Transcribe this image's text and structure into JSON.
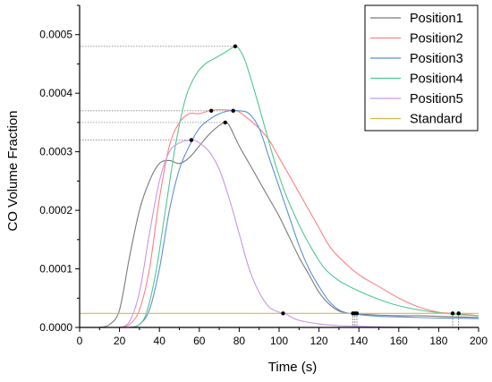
{
  "chart_data": {
    "type": "line",
    "xlabel": "Time (s)",
    "ylabel": "CO  Volume Fraction",
    "xlim": [
      0,
      200
    ],
    "ylim": [
      0,
      0.00055
    ],
    "xticks": [
      0,
      20,
      40,
      60,
      80,
      100,
      120,
      140,
      160,
      180,
      200
    ],
    "yticks": [
      0.0,
      0.0001,
      0.0002,
      0.0003,
      0.0004,
      0.0005
    ],
    "ytick_labels": [
      "0.0000",
      "0.0001",
      "0.0002",
      "0.0003",
      "0.0004",
      "0.0005"
    ],
    "grid": false,
    "legend_position": "top-right",
    "series": [
      {
        "name": "Position1",
        "color": "#7a7a7a",
        "x": [
          10,
          15,
          20,
          25,
          30,
          35,
          40,
          45,
          50,
          55,
          60,
          65,
          70,
          73,
          75,
          80,
          85,
          90,
          95,
          100,
          105,
          110,
          115,
          120,
          125,
          130,
          135,
          138,
          140,
          150,
          160,
          170,
          180,
          190,
          200
        ],
        "y": [
          0,
          5e-06,
          3e-05,
          0.00012,
          0.0002,
          0.00025,
          0.00028,
          0.000285,
          0.00028,
          0.00029,
          0.00031,
          0.00033,
          0.000345,
          0.00035,
          0.000345,
          0.00031,
          0.00028,
          0.00025,
          0.00022,
          0.00019,
          0.000155,
          0.00012,
          9e-05,
          6e-05,
          4e-05,
          2.8e-05,
          2.4e-05,
          2.4e-05,
          2.3e-05,
          2.1e-05,
          2e-05,
          2e-05,
          1.9e-05,
          1.8e-05,
          1.7e-05
        ]
      },
      {
        "name": "Position2",
        "color": "#ff7f7f",
        "x": [
          20,
          25,
          30,
          35,
          40,
          45,
          50,
          55,
          60,
          65,
          70,
          75,
          78,
          80,
          85,
          90,
          95,
          100,
          105,
          110,
          115,
          120,
          125,
          130,
          140,
          150,
          160,
          170,
          180,
          188,
          200
        ],
        "y": [
          0,
          5e-06,
          3e-05,
          0.0001,
          0.00022,
          0.00031,
          0.00035,
          0.000365,
          0.000365,
          0.00037,
          0.000372,
          0.000371,
          0.00037,
          0.000368,
          0.000355,
          0.00034,
          0.00032,
          0.00029,
          0.00026,
          0.00023,
          0.0002,
          0.00017,
          0.00014,
          0.00012,
          9e-05,
          7e-05,
          5e-05,
          3.5e-05,
          2.6e-05,
          2.4e-05,
          2e-05
        ]
      },
      {
        "name": "Position3",
        "color": "#5b8fd6",
        "x": [
          25,
          30,
          35,
          40,
          45,
          50,
          55,
          60,
          65,
          70,
          75,
          80,
          85,
          90,
          95,
          100,
          105,
          110,
          115,
          120,
          125,
          130,
          135,
          139,
          140,
          150,
          160,
          170,
          180,
          190,
          200
        ],
        "y": [
          0,
          5e-06,
          3e-05,
          0.0001,
          0.0002,
          0.00027,
          0.00031,
          0.00034,
          0.000355,
          0.000365,
          0.00037,
          0.00037,
          0.000365,
          0.00034,
          0.00029,
          0.00024,
          0.00019,
          0.00014,
          0.0001,
          7e-05,
          4.5e-05,
          3e-05,
          2.4e-05,
          2.4e-05,
          2.2e-05,
          1.9e-05,
          1.8e-05,
          1.7e-05,
          1.6e-05,
          1.6e-05,
          1.5e-05
        ]
      },
      {
        "name": "Position4",
        "color": "#4fc78f",
        "x": [
          28,
          33,
          38,
          43,
          48,
          53,
          58,
          63,
          68,
          73,
          78,
          80,
          83,
          88,
          93,
          98,
          103,
          108,
          113,
          118,
          123,
          130,
          140,
          150,
          160,
          170,
          180,
          190,
          200
        ],
        "y": [
          0,
          2e-05,
          9e-05,
          0.0002,
          0.00031,
          0.00039,
          0.00043,
          0.00045,
          0.00046,
          0.00047,
          0.00048,
          0.000475,
          0.000455,
          0.0004,
          0.00034,
          0.00028,
          0.00023,
          0.00019,
          0.000155,
          0.000125,
          0.0001,
          8e-05,
          6.2e-05,
          4.8e-05,
          3.7e-05,
          3e-05,
          2.5e-05,
          2.2e-05,
          2e-05
        ]
      },
      {
        "name": "Position5",
        "color": "#c896e8",
        "x": [
          20,
          25,
          30,
          35,
          40,
          45,
          50,
          56,
          60,
          65,
          70,
          75,
          80,
          85,
          90,
          95,
          100,
          103,
          106,
          110,
          120,
          130,
          140,
          150,
          160,
          170,
          180,
          190,
          200
        ],
        "y": [
          0,
          1e-05,
          6e-05,
          0.00016,
          0.00025,
          0.0003,
          0.000315,
          0.00032,
          0.000315,
          0.0003,
          0.00027,
          0.00022,
          0.00016,
          0.0001,
          6e-05,
          3.5e-05,
          2.6e-05,
          2.4e-05,
          1.8e-05,
          1.2e-05,
          6e-06,
          3e-06,
          2e-06,
          1e-06,
          5e-07,
          0,
          0,
          0,
          0
        ]
      },
      {
        "name": "Standard",
        "color": "#d4b84a",
        "x": [
          0,
          200
        ],
        "y": [
          2.4e-05,
          2.4e-05
        ]
      }
    ],
    "markers": [
      {
        "x": 78,
        "y": 0.00048
      },
      {
        "x": 66,
        "y": 0.00037
      },
      {
        "x": 77,
        "y": 0.00037
      },
      {
        "x": 73,
        "y": 0.00035
      },
      {
        "x": 56,
        "y": 0.00032
      },
      {
        "x": 102,
        "y": 2.4e-05
      },
      {
        "x": 137,
        "y": 2.4e-05
      },
      {
        "x": 138,
        "y": 2.4e-05
      },
      {
        "x": 139,
        "y": 2.4e-05
      },
      {
        "x": 187,
        "y": 2.4e-05
      },
      {
        "x": 190,
        "y": 2.4e-05
      }
    ],
    "reference_lines": [
      {
        "x": 78,
        "y": 0.00048
      },
      {
        "x": 77,
        "y": 0.00037
      },
      {
        "x": 73,
        "y": 0.00035
      },
      {
        "x": 56,
        "y": 0.00032
      }
    ],
    "drop_lines": [
      {
        "x": 137,
        "y": 2.4e-05
      },
      {
        "x": 138,
        "y": 2.4e-05
      },
      {
        "x": 139,
        "y": 2.4e-05
      },
      {
        "x": 187,
        "y": 2.4e-05
      },
      {
        "x": 190,
        "y": 2.4e-05
      }
    ]
  }
}
